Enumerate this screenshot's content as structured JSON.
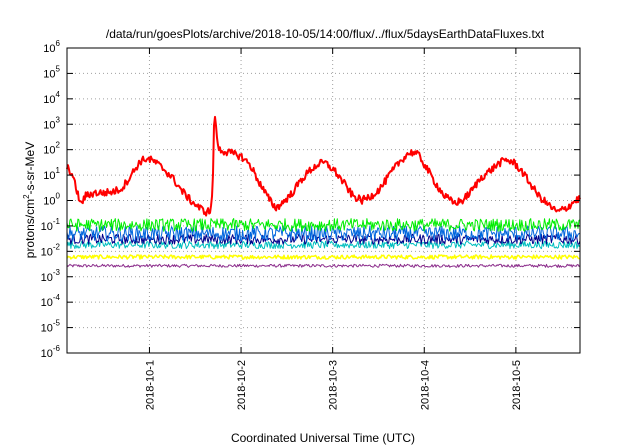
{
  "chart_data": {
    "type": "line",
    "title": "/data/run/goesPlots/archive/2018-10-05/14:00/flux/../flux/5daysEarthDataFluxes.txt",
    "xlabel": "Coordinated Universal Time (UTC)",
    "ylabel_main": "protons/cm",
    "ylabel_sup": "2",
    "ylabel_rest": "-s-sr-MeV",
    "yscale": "log",
    "ylim": [
      1e-06,
      1000000
    ],
    "xlim": [
      0,
      5.6
    ],
    "x_unit": "days since 2018-09-30 00:00 UTC (axis range ≈ 2018-09-30 00:00 to 2018-10-05 14:24)",
    "grid": true,
    "y_ticks": [
      {
        "base": "10",
        "exp": "-6",
        "value": 1e-06
      },
      {
        "base": "10",
        "exp": "-5",
        "value": 1e-05
      },
      {
        "base": "10",
        "exp": "-4",
        "value": 0.0001
      },
      {
        "base": "10",
        "exp": "-3",
        "value": 0.001
      },
      {
        "base": "10",
        "exp": "-2",
        "value": 0.01
      },
      {
        "base": "10",
        "exp": "-1",
        "value": 0.1
      },
      {
        "base": "10",
        "exp": "0",
        "value": 1
      },
      {
        "base": "10",
        "exp": "1",
        "value": 10
      },
      {
        "base": "10",
        "exp": "2",
        "value": 100
      },
      {
        "base": "10",
        "exp": "3",
        "value": 1000
      },
      {
        "base": "10",
        "exp": "4",
        "value": 10000
      },
      {
        "base": "10",
        "exp": "5",
        "value": 100000
      },
      {
        "base": "10",
        "exp": "6",
        "value": 1000000
      }
    ],
    "x_ticks": [
      {
        "label": "2018-10-1",
        "x": 0.9
      },
      {
        "label": "2018-10-2",
        "x": 1.9
      },
      {
        "label": "2018-10-3",
        "x": 2.9
      },
      {
        "label": "2018-10-4",
        "x": 3.9
      },
      {
        "label": "2018-10-5",
        "x": 4.9
      }
    ],
    "series": [
      {
        "color": "#ff0000",
        "width": 2,
        "jitter": 0.15,
        "points": [
          [
            0.0,
            20
          ],
          [
            0.05,
            12
          ],
          [
            0.1,
            3
          ],
          [
            0.15,
            0.7
          ],
          [
            0.2,
            1.5
          ],
          [
            0.3,
            2.0
          ],
          [
            0.4,
            2.0
          ],
          [
            0.5,
            2.2
          ],
          [
            0.6,
            3.0
          ],
          [
            0.7,
            10
          ],
          [
            0.8,
            35
          ],
          [
            0.87,
            45
          ],
          [
            0.95,
            35
          ],
          [
            1.05,
            18
          ],
          [
            1.15,
            8
          ],
          [
            1.25,
            2.5
          ],
          [
            1.35,
            1.0
          ],
          [
            1.45,
            0.5
          ],
          [
            1.52,
            0.35
          ],
          [
            1.57,
            0.4
          ],
          [
            1.59,
            3
          ],
          [
            1.61,
            5000
          ],
          [
            1.63,
            400
          ],
          [
            1.66,
            100
          ],
          [
            1.75,
            80
          ],
          [
            1.9,
            55
          ],
          [
            2.0,
            25
          ],
          [
            2.1,
            5
          ],
          [
            2.2,
            1.2
          ],
          [
            2.28,
            0.5
          ],
          [
            2.35,
            0.8
          ],
          [
            2.45,
            1.8
          ],
          [
            2.55,
            6
          ],
          [
            2.65,
            15
          ],
          [
            2.75,
            28
          ],
          [
            2.82,
            30
          ],
          [
            2.92,
            15
          ],
          [
            3.02,
            5
          ],
          [
            3.12,
            1.5
          ],
          [
            3.22,
            1.0
          ],
          [
            3.32,
            1.5
          ],
          [
            3.42,
            3
          ],
          [
            3.52,
            10
          ],
          [
            3.62,
            30
          ],
          [
            3.72,
            70
          ],
          [
            3.78,
            80
          ],
          [
            3.85,
            55
          ],
          [
            3.92,
            20
          ],
          [
            4.02,
            5
          ],
          [
            4.12,
            1.5
          ],
          [
            4.22,
            0.8
          ],
          [
            4.32,
            1.0
          ],
          [
            4.42,
            2.5
          ],
          [
            4.52,
            8
          ],
          [
            4.62,
            15
          ],
          [
            4.72,
            30
          ],
          [
            4.8,
            40
          ],
          [
            4.88,
            30
          ],
          [
            4.96,
            15
          ],
          [
            5.05,
            5
          ],
          [
            5.15,
            1.5
          ],
          [
            5.25,
            0.7
          ],
          [
            5.35,
            0.35
          ],
          [
            5.45,
            0.5
          ],
          [
            5.55,
            1.0
          ],
          [
            5.6,
            1.2
          ]
        ]
      },
      {
        "color": "#00ee00",
        "width": 1,
        "jitter": 0.25,
        "level": 0.11
      },
      {
        "color": "#0066dd",
        "width": 1,
        "jitter": 0.3,
        "level": 0.05
      },
      {
        "color": "#00008b",
        "width": 1,
        "jitter": 0.2,
        "level": 0.03
      },
      {
        "color": "#00bfbf",
        "width": 1,
        "jitter": 0.15,
        "level": 0.018
      },
      {
        "color": "#ffff00",
        "width": 1.5,
        "jitter": 0.08,
        "level": 0.006
      },
      {
        "color": "#8b2c8b",
        "width": 1,
        "jitter": 0.06,
        "level": 0.0027
      }
    ]
  }
}
